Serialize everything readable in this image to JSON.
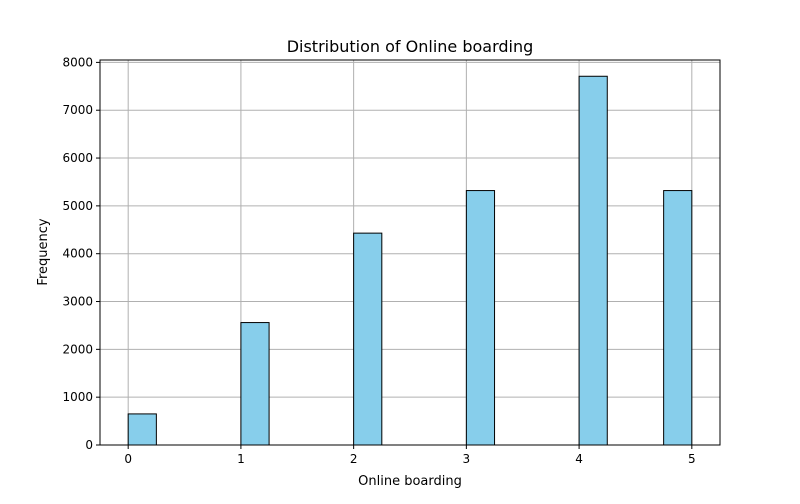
{
  "chart_data": {
    "type": "bar",
    "title": "Distribution of Online boarding",
    "xlabel": "Online boarding",
    "ylabel": "Frequency",
    "xlim": [
      -0.25,
      5.25
    ],
    "ylim": [
      0,
      8050
    ],
    "x_ticks": [
      0,
      1,
      2,
      3,
      4,
      5
    ],
    "y_ticks": [
      0,
      1000,
      2000,
      3000,
      4000,
      5000,
      6000,
      7000,
      8000
    ],
    "grid": true,
    "bar_color": "#87CEEB",
    "edge_color": "#000000",
    "bins": [
      {
        "x_start": 0.0,
        "x_end": 0.25,
        "value": 650
      },
      {
        "x_start": 1.0,
        "x_end": 1.25,
        "value": 2560
      },
      {
        "x_start": 2.0,
        "x_end": 2.25,
        "value": 4430
      },
      {
        "x_start": 3.0,
        "x_end": 3.25,
        "value": 5320
      },
      {
        "x_start": 4.0,
        "x_end": 4.25,
        "value": 7710
      },
      {
        "x_start": 4.75,
        "x_end": 5.0,
        "value": 5320
      }
    ]
  }
}
